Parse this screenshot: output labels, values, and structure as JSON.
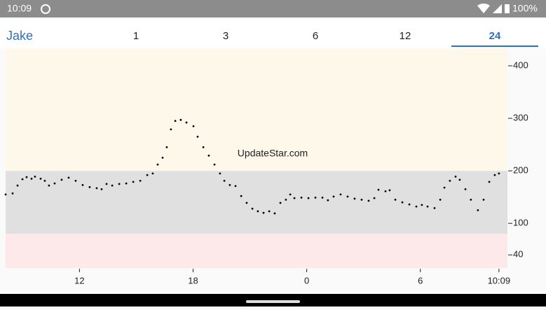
{
  "status_bar": {
    "time": "10:09",
    "battery": "100%"
  },
  "tabs": {
    "user": "Jake",
    "items": [
      "1",
      "3",
      "6",
      "12",
      "24"
    ],
    "selected": 4
  },
  "watermark": "UpdateStar.com",
  "chart_data": {
    "type": "scatter",
    "color": "#000000",
    "x": [
      8.1,
      8.47,
      8.73,
      8.99,
      9.21,
      9.47,
      9.65,
      9.95,
      10.17,
      10.39,
      10.69,
      11.06,
      11.43,
      11.8,
      12.17,
      12.54,
      12.91,
      13.17,
      13.43,
      13.73,
      14.1,
      14.47,
      14.84,
      15.21,
      15.58,
      15.87,
      16.13,
      16.39,
      16.61,
      16.83,
      17.06,
      17.35,
      17.65,
      18.02,
      18.24,
      18.54,
      18.83,
      19.13,
      19.42,
      19.65,
      19.94,
      20.24,
      20.54,
      20.83,
      21.13,
      21.42,
      21.72,
      22.02,
      22.31,
      22.61,
      22.9,
      23.13,
      23.35,
      23.72,
      24.09,
      24.46,
      24.83,
      25.12,
      25.42,
      25.79,
      26.16,
      26.53,
      26.9,
      27.27,
      27.57,
      27.79,
      28.16,
      28.38,
      28.68,
      29.05,
      29.42,
      29.79,
      30.08,
      30.38,
      30.75,
      31.05,
      31.27,
      31.56,
      31.86,
      32.08,
      32.38,
      32.67,
      33.04,
      33.34,
      33.64,
      33.93,
      34.15
    ],
    "values": [
      155,
      157,
      172,
      184,
      188,
      185,
      189,
      185,
      181,
      172,
      176,
      183,
      187,
      181,
      173,
      169,
      167,
      165,
      175,
      172,
      175,
      176,
      179,
      181,
      192,
      195,
      212,
      225,
      245,
      279,
      295,
      297,
      292,
      285,
      265,
      245,
      229,
      212,
      195,
      181,
      173,
      171,
      152,
      139,
      128,
      123,
      120,
      123,
      119,
      139,
      145,
      155,
      148,
      149,
      148,
      149,
      149,
      144,
      151,
      155,
      151,
      147,
      145,
      143,
      148,
      164,
      161,
      163,
      145,
      140,
      136,
      132,
      135,
      132,
      129,
      145,
      168,
      181,
      189,
      183,
      165,
      145,
      125,
      145,
      179,
      192,
      195
    ],
    "xlim": [
      8.1,
      34.6
    ],
    "ylim": [
      15,
      432
    ],
    "xticks": [
      12,
      18,
      {
        "value": 24,
        "label": "0"
      },
      {
        "value": 30,
        "label": "6"
      },
      {
        "value": 34.15,
        "label": "10:09"
      }
    ],
    "yticks": [
      400,
      300,
      200,
      100,
      40
    ],
    "low": 80,
    "high": 200,
    "high_color": "#fdf8ea",
    "target_color": "#e0e0e0",
    "low_color": "#fde8ea"
  }
}
